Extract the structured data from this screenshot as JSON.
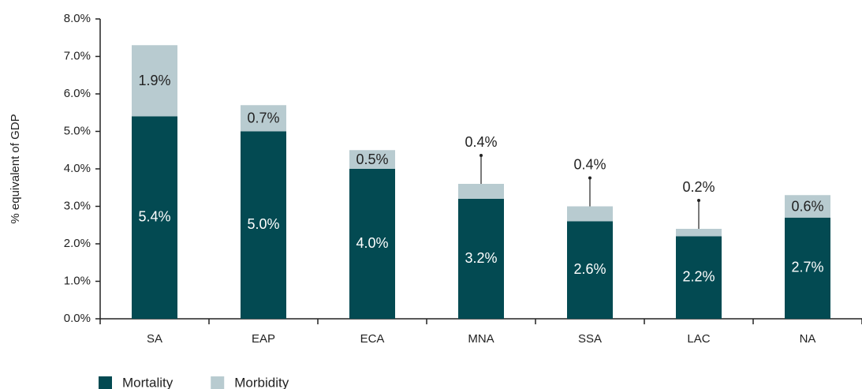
{
  "chart_data": {
    "type": "stacked_bar",
    "y_label": "% equivalent of GDP",
    "categories": [
      "SA",
      "EAP",
      "ECA",
      "MNA",
      "SSA",
      "LAC",
      "NA"
    ],
    "series": [
      {
        "name": "Mortality",
        "color": "#034a52",
        "values": [
          5.4,
          5.0,
          4.0,
          3.2,
          2.6,
          2.2,
          2.7
        ],
        "value_labels": [
          "5.4%",
          "5.0%",
          "4.0%",
          "3.2%",
          "2.6%",
          "2.2%",
          "2.7%"
        ]
      },
      {
        "name": "Morbidity",
        "color": "#b8cbd0",
        "values": [
          1.9,
          0.7,
          0.5,
          0.4,
          0.4,
          0.2,
          0.6
        ],
        "value_labels": [
          "1.9%",
          "0.7%",
          "0.5%",
          "0.4%",
          "0.4%",
          "0.2%",
          "0.6%"
        ]
      }
    ],
    "ylim": [
      0,
      8
    ],
    "yticks": [
      {
        "value": 0,
        "label": "0.0%"
      },
      {
        "value": 1,
        "label": "1.0%"
      },
      {
        "value": 2,
        "label": "2.0%"
      },
      {
        "value": 3,
        "label": "3.0%"
      },
      {
        "value": 4,
        "label": "4.0%"
      },
      {
        "value": 5,
        "label": "5.0%"
      },
      {
        "value": 6,
        "label": "6.0%"
      },
      {
        "value": 7,
        "label": "7.0%"
      },
      {
        "value": 8,
        "label": "8.0%"
      }
    ],
    "legend": "bottom-left"
  }
}
